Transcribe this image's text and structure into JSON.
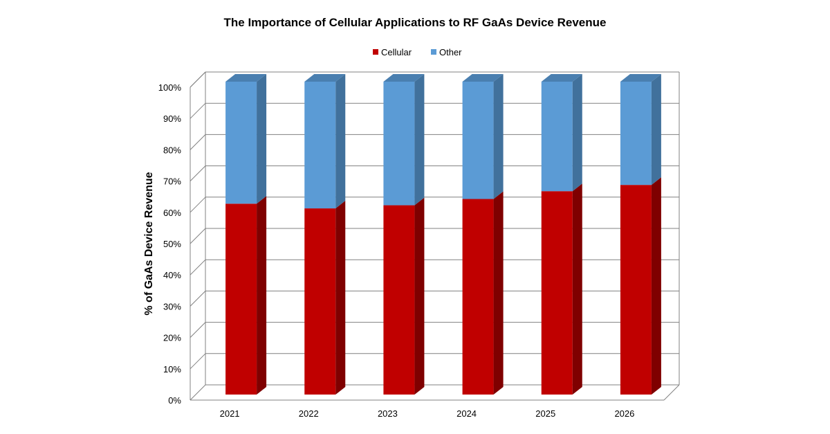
{
  "chart_data": {
    "type": "bar",
    "stacked": true,
    "percent": true,
    "three_d": true,
    "title": "The Importance of Cellular Applications to RF GaAs Device Revenue",
    "xlabel": "",
    "ylabel": "% of GaAs Device Revenue",
    "categories": [
      "2021",
      "2022",
      "2023",
      "2024",
      "2025",
      "2026"
    ],
    "series": [
      {
        "name": "Cellular",
        "color": "#C00000",
        "values": [
          61,
          59.5,
          60.5,
          62.5,
          65,
          67
        ]
      },
      {
        "name": "Other",
        "color": "#5B9BD5",
        "values": [
          39,
          40.5,
          39.5,
          37.5,
          35,
          33
        ]
      }
    ],
    "ylim": [
      0,
      100
    ],
    "yticks": [
      "0%",
      "10%",
      "20%",
      "30%",
      "40%",
      "50%",
      "60%",
      "70%",
      "80%",
      "90%",
      "100%"
    ],
    "grid": true,
    "legend_position": "top"
  }
}
